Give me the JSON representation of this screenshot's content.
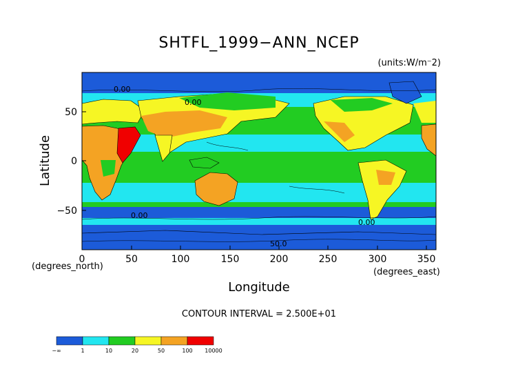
{
  "chart_data": {
    "type": "heatmap",
    "title": "SHTFL_1999−ANN_NCEP",
    "units_label": "(units:W/m⁻2)",
    "xlabel": "Longitude",
    "ylabel": "Latitude",
    "x_unit_label": "(degrees_east)",
    "y_unit_label": "(degrees_north)",
    "xlim": [
      0,
      360
    ],
    "ylim": [
      -90,
      90
    ],
    "x_ticks": [
      "0",
      "50",
      "100",
      "150",
      "200",
      "250",
      "300",
      "350"
    ],
    "y_ticks": [
      "50",
      "0",
      "−50"
    ],
    "contour_labels": [
      "0.00",
      "0.00",
      "0.00",
      "0.00",
      "50.0"
    ],
    "contour_interval": "CONTOUR INTERVAL = 2.500E+01",
    "colorbar": {
      "labels": [
        "−∞",
        "1",
        "10",
        "20",
        "50",
        "100",
        "10000"
      ],
      "colors": [
        "#1c5bd9",
        "#22e6f0",
        "#22cc22",
        "#f6f624",
        "#f4a323",
        "#f00000"
      ]
    },
    "colors": {
      "ocean_low": "#1c5bd9",
      "ocean_mid": "#22e6f0",
      "ocean_high": "#22cc22",
      "land_warm": "#f6f624",
      "land_hot": "#f4a323",
      "extreme": "#f00000"
    }
  }
}
